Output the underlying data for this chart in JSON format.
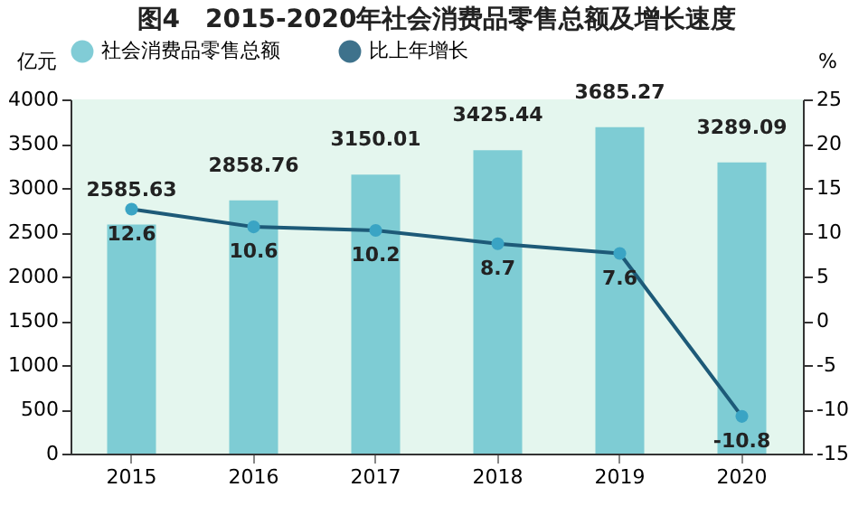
{
  "chart_data": {
    "type": "bar",
    "title": "图4　2015-2020年社会消费品零售总额及增长速度",
    "ylabel": "亿元",
    "y2label": "%",
    "categories": [
      "2015",
      "2016",
      "2017",
      "2018",
      "2019",
      "2020"
    ],
    "series": [
      {
        "name": "社会消费品零售总额",
        "color": "#6cc4cf",
        "values": [
          2585.63,
          2858.76,
          3150.01,
          3425.44,
          3685.27,
          3289.09
        ]
      },
      {
        "name": "比上年增长",
        "type": "line",
        "axis": "y2",
        "color": "#1d5a78",
        "values": [
          12.6,
          10.6,
          10.2,
          8.7,
          7.6,
          -10.8
        ]
      }
    ],
    "ylim": [
      0,
      4000
    ],
    "yticks": [
      0,
      500,
      1000,
      1500,
      2000,
      2500,
      3000,
      3500,
      4000
    ],
    "y2lim": [
      -15,
      25
    ],
    "y2ticks": [
      -15,
      -10,
      -5,
      0,
      5,
      10,
      15,
      20,
      25
    ],
    "data_labels": true,
    "legend": "top",
    "marker": "circle",
    "grid": false
  }
}
